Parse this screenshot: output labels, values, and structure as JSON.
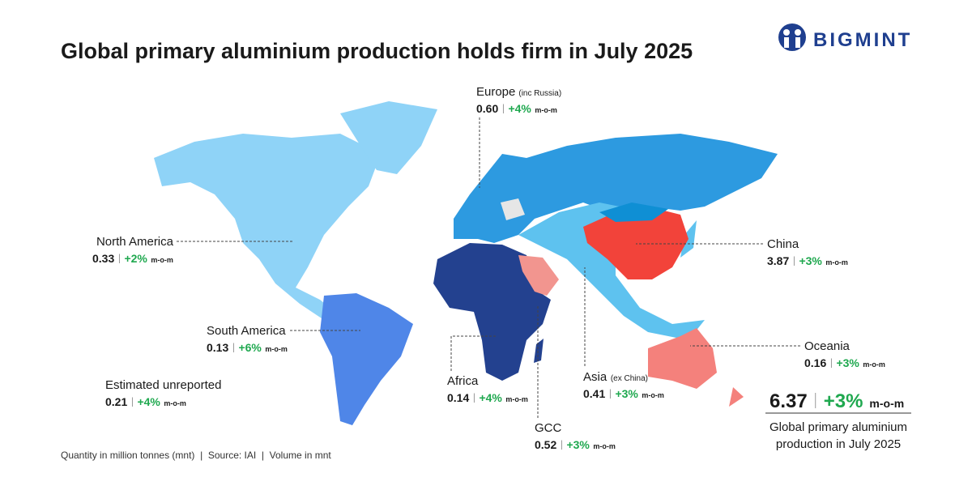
{
  "header": {
    "title": "Global primary aluminium production holds firm in July 2025",
    "logo": "BIGMINT"
  },
  "regions": [
    {
      "name": "Europe",
      "qualifier": "(inc Russia)",
      "value": "0.60",
      "change": "+4%",
      "period": "m-o-m"
    },
    {
      "name": "North America",
      "value": "0.33",
      "change": "+2%",
      "period": "m-o-m"
    },
    {
      "name": "South America",
      "value": "0.13",
      "change": "+6%",
      "period": "m-o-m"
    },
    {
      "name": "Estimated unreported",
      "value": "0.21",
      "change": "+4%",
      "period": "m-o-m"
    },
    {
      "name": "Africa",
      "value": "0.14",
      "change": "+4%",
      "period": "m-o-m"
    },
    {
      "name": "GCC",
      "value": "0.52",
      "change": "+3%",
      "period": "m-o-m"
    },
    {
      "name": "Asia",
      "qualifier": "(ex China)",
      "value": "0.41",
      "change": "+3%",
      "period": "m-o-m"
    },
    {
      "name": "China",
      "value": "3.87",
      "change": "+3%",
      "period": "m-o-m"
    },
    {
      "name": "Oceania",
      "value": "0.16",
      "change": "+3%",
      "period": "m-o-m"
    }
  ],
  "total": {
    "value": "6.37",
    "change": "+3%",
    "period": "m-o-m",
    "caption_lines": [
      "Global primary aluminium",
      "production in July 2025"
    ]
  },
  "footer": "Quantity in million tonnes (mnt)  |  Source: IAI  |  Volume in mnt"
}
